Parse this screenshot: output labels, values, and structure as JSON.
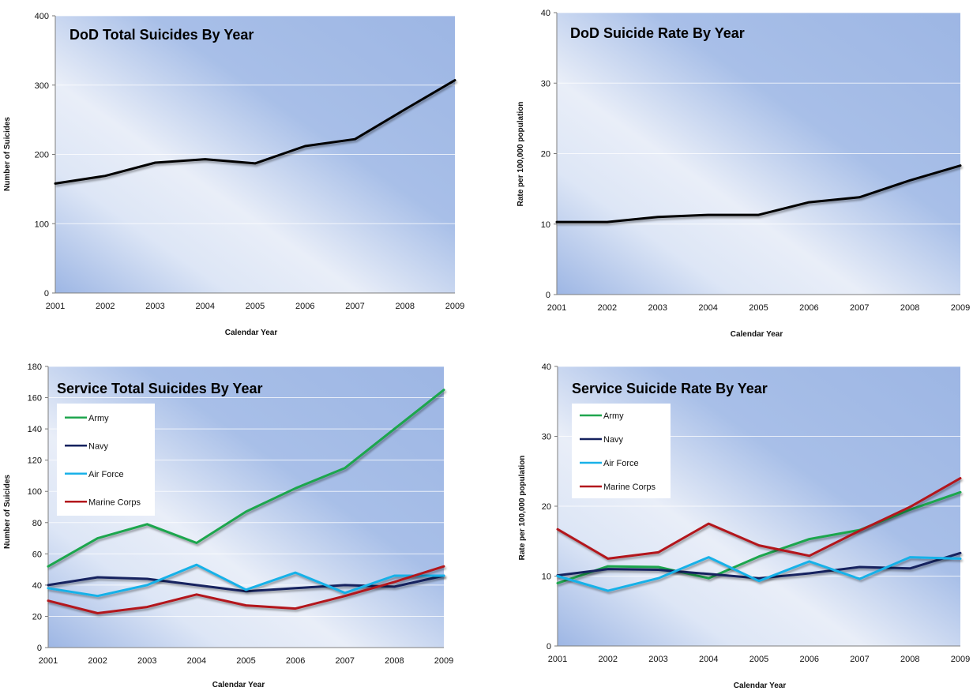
{
  "chart_data": [
    {
      "type": "line",
      "title": "DoD Total Suicides By Year",
      "xlabel": "Calendar Year",
      "ylabel": "Number of Suicides",
      "x": [
        "2001",
        "2002",
        "2003",
        "2004",
        "2005",
        "2006",
        "2007",
        "2008",
        "2009"
      ],
      "ylim": [
        0,
        400
      ],
      "yticks": [
        "0",
        "100",
        "200",
        "300",
        "400"
      ],
      "grid": true,
      "legend": "none",
      "series": [
        {
          "color": "#000000",
          "values": [
            158,
            169,
            188,
            193,
            187,
            212,
            222,
            265,
            307
          ]
        }
      ]
    },
    {
      "type": "line",
      "title": "DoD Suicide Rate By Year",
      "xlabel": "Calendar Year",
      "ylabel": "Rate per 100,000 population",
      "x": [
        "2001",
        "2002",
        "2003",
        "2004",
        "2005",
        "2006",
        "2007",
        "2008",
        "2009"
      ],
      "ylim": [
        0,
        40
      ],
      "yticks": [
        "0",
        "10",
        "20",
        "30",
        "40"
      ],
      "grid": true,
      "legend": "none",
      "series": [
        {
          "color": "#000000",
          "values": [
            10.3,
            10.3,
            11.0,
            11.3,
            11.3,
            13.1,
            13.8,
            16.2,
            18.3
          ]
        }
      ]
    },
    {
      "type": "line",
      "title": "Service Total Suicides By Year",
      "xlabel": "Calendar Year",
      "ylabel": "Number of Suicides",
      "x": [
        "2001",
        "2002",
        "2003",
        "2004",
        "2005",
        "2006",
        "2007",
        "2008",
        "2009"
      ],
      "ylim": [
        0,
        180
      ],
      "yticks": [
        "0",
        "20",
        "40",
        "60",
        "80",
        "100",
        "120",
        "140",
        "160",
        "180"
      ],
      "grid": true,
      "legend": "top-left",
      "series": [
        {
          "name": "Army",
          "color": "#1fa64e",
          "values": [
            52,
            70,
            79,
            67,
            87,
            102,
            115,
            140,
            165
          ]
        },
        {
          "name": "Navy",
          "color": "#14215e",
          "values": [
            40,
            45,
            44,
            40,
            36,
            38,
            40,
            39,
            46
          ]
        },
        {
          "name": "Air Force",
          "color": "#19b1e8",
          "values": [
            38,
            33,
            40,
            53,
            37,
            48,
            35,
            46,
            46
          ]
        },
        {
          "name": "Marine Corps",
          "color": "#b3171c",
          "values": [
            30,
            22,
            26,
            34,
            27,
            25,
            33,
            42,
            52
          ]
        }
      ]
    },
    {
      "type": "line",
      "title": "Service Suicide Rate By Year",
      "xlabel": "Calendar Year",
      "ylabel": "Rate per 100,000 population",
      "x": [
        "2001",
        "2002",
        "2003",
        "2004",
        "2005",
        "2006",
        "2007",
        "2008",
        "2009"
      ],
      "ylim": [
        0,
        40
      ],
      "yticks": [
        "0",
        "10",
        "20",
        "30",
        "40"
      ],
      "grid": true,
      "legend": "top-left",
      "series": [
        {
          "name": "Army",
          "color": "#1fa64e",
          "values": [
            9.0,
            11.4,
            11.3,
            9.7,
            12.8,
            15.3,
            16.6,
            19.5,
            22.0
          ]
        },
        {
          "name": "Navy",
          "color": "#14215e",
          "values": [
            10.1,
            11.0,
            10.9,
            10.3,
            9.7,
            10.4,
            11.3,
            11.1,
            13.3
          ]
        },
        {
          "name": "Air Force",
          "color": "#19b1e8",
          "values": [
            10.0,
            7.9,
            9.7,
            12.7,
            9.3,
            12.1,
            9.6,
            12.7,
            12.5
          ]
        },
        {
          "name": "Marine Corps",
          "color": "#b3171c",
          "values": [
            16.7,
            12.5,
            13.4,
            17.5,
            14.4,
            12.9,
            16.5,
            19.9,
            24.0
          ]
        }
      ]
    }
  ]
}
